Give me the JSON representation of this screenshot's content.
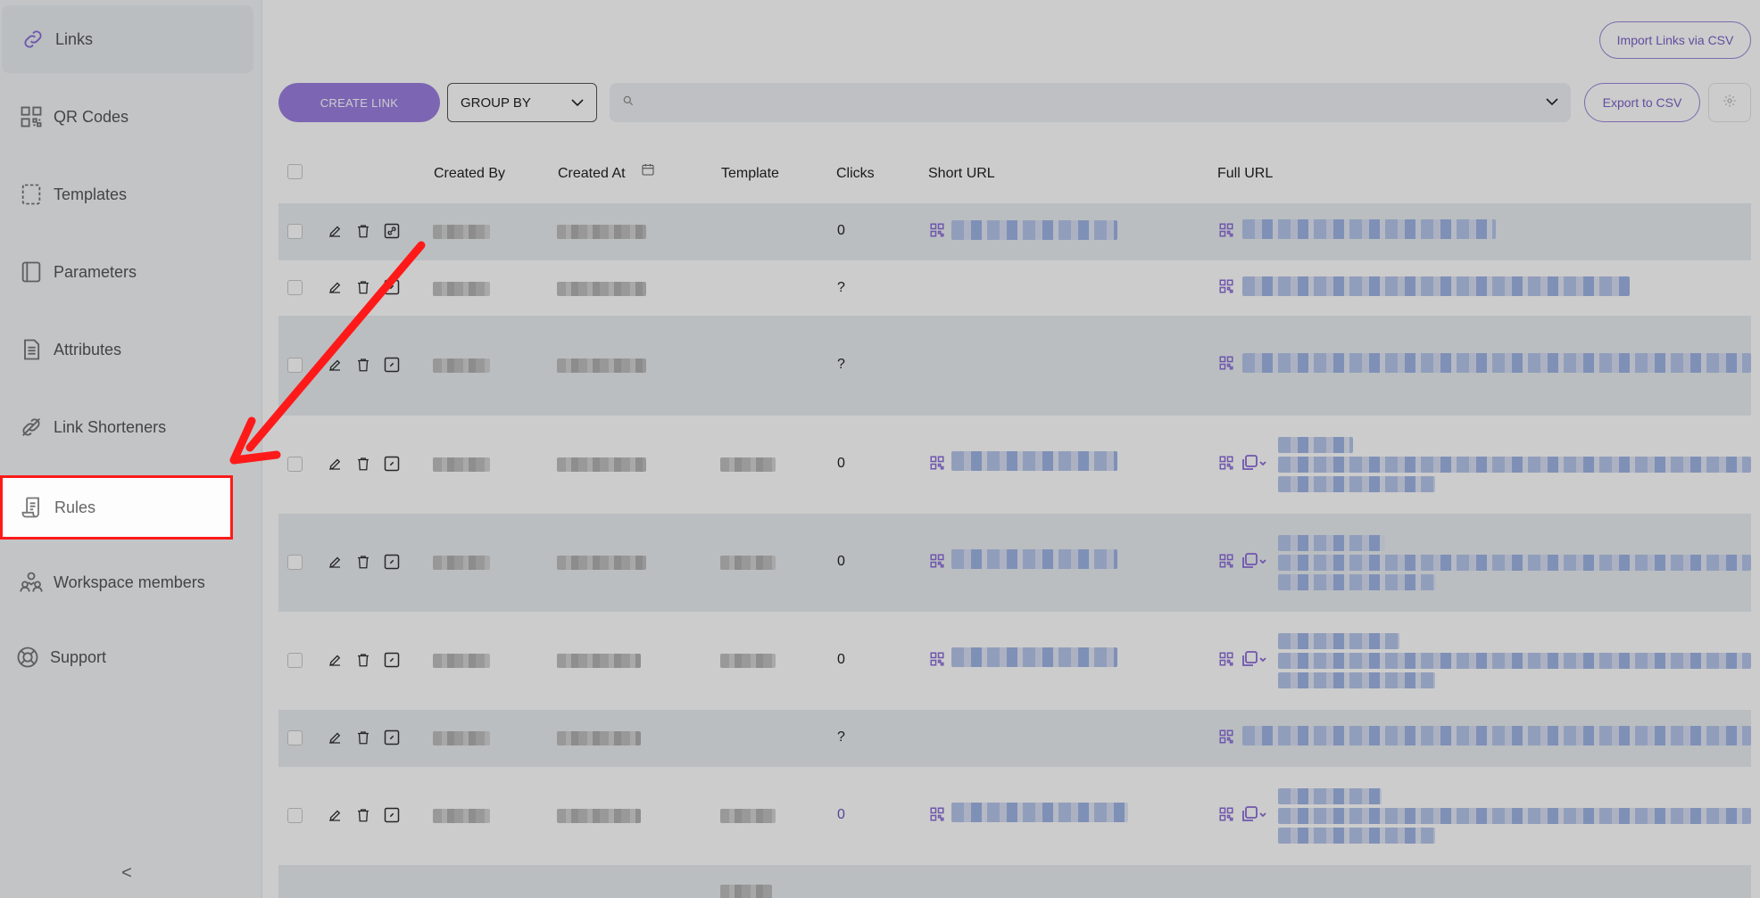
{
  "sidebar": {
    "items": [
      {
        "label": "Links",
        "icon": "link-icon"
      },
      {
        "label": "QR Codes",
        "icon": "qr-code-icon"
      },
      {
        "label": "Templates",
        "icon": "template-icon"
      },
      {
        "label": "Parameters",
        "icon": "parameters-icon"
      },
      {
        "label": "Attributes",
        "icon": "document-icon"
      },
      {
        "label": "Link Shorteners",
        "icon": "link-shortener-icon"
      },
      {
        "label": "Rules",
        "icon": "scroll-icon"
      },
      {
        "label": "Workspace members",
        "icon": "members-icon"
      },
      {
        "label": "Support",
        "icon": "lifebuoy-icon"
      }
    ],
    "collapse_label": "<"
  },
  "toolbar": {
    "import_label": "Import Links via CSV",
    "create_label": "CREATE LINK",
    "groupby_label": "GROUP BY",
    "search_placeholder": "",
    "export_label": "Export to CSV"
  },
  "table": {
    "columns": [
      "Created By",
      "Created At",
      "Template",
      "Clicks",
      "Short URL",
      "Full URL"
    ],
    "rows": [
      {
        "clicks": "0"
      },
      {
        "clicks": "?"
      },
      {
        "clicks": "?"
      },
      {
        "clicks": "0"
      },
      {
        "clicks": "0"
      },
      {
        "clicks": "0"
      },
      {
        "clicks": "?"
      },
      {
        "clicks": "0"
      }
    ]
  },
  "colors": {
    "accent": "#9b7fe0",
    "highlight": "#ff1a1a"
  }
}
